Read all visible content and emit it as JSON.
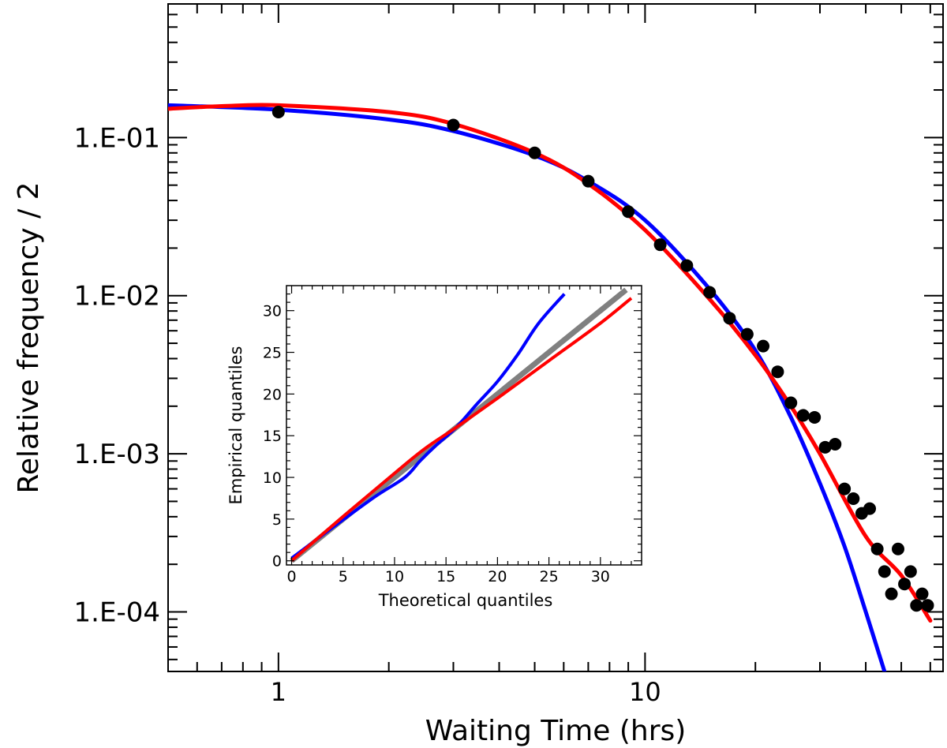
{
  "chart_data": [
    {
      "type": "scatter",
      "xlabel": "Waiting Time (hrs)",
      "ylabel": "Relative frequency / 2",
      "xscale": "log",
      "yscale": "log",
      "xlim": [
        0.5,
        65
      ],
      "ylim": [
        4.2e-05,
        0.7
      ],
      "grid": false,
      "x_tick_labels": [
        {
          "v": 1,
          "t": "1"
        },
        {
          "v": 10,
          "t": "10"
        }
      ],
      "y_tick_labels": [
        {
          "v": 0.1,
          "t": "1.E-01"
        },
        {
          "v": 0.01,
          "t": "1.E-02"
        },
        {
          "v": 0.001,
          "t": "1.E-03"
        },
        {
          "v": 0.0001,
          "t": "1.E-04"
        }
      ],
      "series": [
        {
          "kind": "points",
          "color": "#000000",
          "points": [
            [
              1,
              0.145
            ],
            [
              3,
              0.12
            ],
            [
              5,
              0.08
            ],
            [
              7,
              0.053
            ],
            [
              9,
              0.034
            ],
            [
              11,
              0.021
            ],
            [
              13,
              0.0155
            ],
            [
              15,
              0.0105
            ],
            [
              17,
              0.0072
            ],
            [
              19,
              0.0057
            ],
            [
              21,
              0.0048
            ],
            [
              23,
              0.0033
            ],
            [
              25,
              0.0021
            ],
            [
              27,
              0.00175
            ],
            [
              29,
              0.0017
            ],
            [
              31,
              0.0011
            ],
            [
              33,
              0.00115
            ],
            [
              35,
              0.0006
            ],
            [
              37,
              0.00052
            ],
            [
              39,
              0.00042
            ],
            [
              41,
              0.00045
            ],
            [
              43,
              0.00025
            ],
            [
              45,
              0.00018
            ],
            [
              47,
              0.00013
            ],
            [
              49,
              0.00025
            ],
            [
              51,
              0.00015
            ],
            [
              53,
              0.00018
            ],
            [
              55,
              0.00011
            ],
            [
              57,
              0.00013
            ],
            [
              59,
              0.00011
            ]
          ]
        },
        {
          "kind": "line",
          "color": "#0000ff",
          "points": [
            [
              0.5,
              0.16
            ],
            [
              1,
              0.15
            ],
            [
              2,
              0.13
            ],
            [
              3,
              0.11
            ],
            [
              5,
              0.077
            ],
            [
              7,
              0.053
            ],
            [
              10,
              0.03
            ],
            [
              15,
              0.011
            ],
            [
              20,
              0.0045
            ],
            [
              25,
              0.0017
            ],
            [
              30,
              0.00065
            ],
            [
              35,
              0.00026
            ],
            [
              40,
              0.0001
            ],
            [
              45,
              4.2e-05
            ]
          ]
        },
        {
          "kind": "line",
          "color": "#ff0000",
          "points": [
            [
              0.5,
              0.152
            ],
            [
              0.7,
              0.158
            ],
            [
              1,
              0.16
            ],
            [
              2,
              0.145
            ],
            [
              3,
              0.122
            ],
            [
              5,
              0.08
            ],
            [
              7,
              0.051
            ],
            [
              10,
              0.026
            ],
            [
              15,
              0.0095
            ],
            [
              20,
              0.0042
            ],
            [
              25,
              0.002
            ],
            [
              30,
              0.001
            ],
            [
              40,
              0.0003
            ],
            [
              50,
              0.00017
            ],
            [
              60,
              8.8e-05
            ]
          ]
        }
      ]
    },
    {
      "type": "line",
      "xlabel": "Theoretical quantiles",
      "ylabel": "Empirical quantiles",
      "xlim": [
        -0.5,
        34
      ],
      "ylim": [
        -0.5,
        33
      ],
      "grid": false,
      "x_ticks": [
        0,
        5,
        10,
        15,
        20,
        25,
        30
      ],
      "y_ticks": [
        0,
        5,
        10,
        15,
        20,
        25,
        30
      ],
      "series": [
        {
          "kind": "line",
          "color": "#808080",
          "points": [
            [
              0,
              0
            ],
            [
              32.5,
              32.5
            ]
          ]
        },
        {
          "kind": "line",
          "color": "#0000ff",
          "points": [
            [
              0,
              0.3
            ],
            [
              4,
              4
            ],
            [
              8,
              7.6
            ],
            [
              11,
              10
            ],
            [
              12.5,
              12
            ],
            [
              14,
              13.8
            ],
            [
              16,
              16
            ],
            [
              18,
              18.8
            ],
            [
              20,
              21.5
            ],
            [
              22,
              24.8
            ],
            [
              24,
              28.5
            ],
            [
              26.5,
              32
            ]
          ]
        },
        {
          "kind": "line",
          "color": "#ff0000",
          "points": [
            [
              0,
              0
            ],
            [
              5,
              5.3
            ],
            [
              10,
              10.5
            ],
            [
              13,
              13.5
            ],
            [
              16,
              16
            ],
            [
              20,
              19.5
            ],
            [
              25,
              24
            ],
            [
              30,
              28.5
            ],
            [
              33,
              31.5
            ]
          ]
        }
      ]
    }
  ]
}
